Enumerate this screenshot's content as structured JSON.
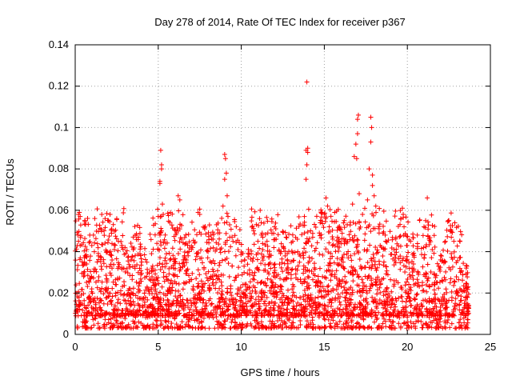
{
  "chart_data": {
    "type": "scatter",
    "title": "Day 278 of 2014, Rate Of TEC Index for receiver p367",
    "xlabel": "GPS time / hours",
    "ylabel": "ROTI / TECUs",
    "xlim": [
      0,
      25
    ],
    "ylim": [
      0,
      0.14
    ],
    "xticks": [
      0,
      5,
      10,
      15,
      20,
      25
    ],
    "yticks": [
      0,
      0.02,
      0.04,
      0.06,
      0.08,
      0.1,
      0.12,
      0.14
    ],
    "xtick_labels": [
      "0",
      "5",
      "10",
      "15",
      "20",
      "25"
    ],
    "ytick_labels": [
      "0",
      "0.02",
      "0.04",
      "0.06",
      "0.08",
      "0.1",
      "0.12",
      "0.14"
    ],
    "grid": true,
    "marker": "+",
    "color": "#ff0000",
    "series": [
      {
        "name": "ROTI",
        "points": [
          [
            0.2,
            0.058
          ],
          [
            0.25,
            0.059
          ],
          [
            0.3,
            0.057
          ],
          [
            0.2,
            0.045
          ],
          [
            0.3,
            0.043
          ],
          [
            0.6,
            0.038
          ],
          [
            0.7,
            0.041
          ],
          [
            1.0,
            0.043
          ],
          [
            1.1,
            0.048
          ],
          [
            1.6,
            0.058
          ],
          [
            1.8,
            0.056
          ],
          [
            2.0,
            0.055
          ],
          [
            2.1,
            0.058
          ],
          [
            2.2,
            0.051
          ],
          [
            2.5,
            0.056
          ],
          [
            2.6,
            0.045
          ],
          [
            3.0,
            0.042
          ],
          [
            3.5,
            0.041
          ],
          [
            3.8,
            0.047
          ],
          [
            4.0,
            0.035
          ],
          [
            4.3,
            0.028
          ],
          [
            4.6,
            0.031
          ],
          [
            5.0,
            0.057
          ],
          [
            5.1,
            0.074
          ],
          [
            5.15,
            0.089
          ],
          [
            5.2,
            0.08
          ],
          [
            5.2,
            0.082
          ],
          [
            5.1,
            0.073
          ],
          [
            5.25,
            0.063
          ],
          [
            5.3,
            0.058
          ],
          [
            5.2,
            0.05
          ],
          [
            5.7,
            0.036
          ],
          [
            6.1,
            0.049
          ],
          [
            6.2,
            0.05
          ],
          [
            6.2,
            0.067
          ],
          [
            6.3,
            0.065
          ],
          [
            6.4,
            0.046
          ],
          [
            6.8,
            0.038
          ],
          [
            7.0,
            0.041
          ],
          [
            7.4,
            0.059
          ],
          [
            7.5,
            0.058
          ],
          [
            7.8,
            0.051
          ],
          [
            8.0,
            0.04
          ],
          [
            8.3,
            0.046
          ],
          [
            8.6,
            0.049
          ],
          [
            8.9,
            0.062
          ],
          [
            9.0,
            0.087
          ],
          [
            9.05,
            0.085
          ],
          [
            9.1,
            0.078
          ],
          [
            9.0,
            0.075
          ],
          [
            9.15,
            0.067
          ],
          [
            9.2,
            0.057
          ],
          [
            9.3,
            0.053
          ],
          [
            9.5,
            0.045
          ],
          [
            9.8,
            0.041
          ],
          [
            10.2,
            0.036
          ],
          [
            10.6,
            0.039
          ],
          [
            11.0,
            0.045
          ],
          [
            11.1,
            0.056
          ],
          [
            11.2,
            0.054
          ],
          [
            11.6,
            0.049
          ],
          [
            12.0,
            0.052
          ],
          [
            12.1,
            0.046
          ],
          [
            12.4,
            0.04
          ],
          [
            12.7,
            0.047
          ],
          [
            13.1,
            0.045
          ],
          [
            13.4,
            0.04
          ],
          [
            13.8,
            0.057
          ],
          [
            13.9,
            0.075
          ],
          [
            13.95,
            0.082
          ],
          [
            13.9,
            0.089
          ],
          [
            14.0,
            0.09
          ],
          [
            14.0,
            0.088
          ],
          [
            13.95,
            0.122
          ],
          [
            14.3,
            0.047
          ],
          [
            14.7,
            0.049
          ],
          [
            15.0,
            0.058
          ],
          [
            15.1,
            0.066
          ],
          [
            15.2,
            0.062
          ],
          [
            15.3,
            0.052
          ],
          [
            15.5,
            0.043
          ],
          [
            15.8,
            0.047
          ],
          [
            16.2,
            0.055
          ],
          [
            16.4,
            0.045
          ],
          [
            16.7,
            0.063
          ],
          [
            16.8,
            0.086
          ],
          [
            16.9,
            0.092
          ],
          [
            17.0,
            0.097
          ],
          [
            17.0,
            0.104
          ],
          [
            17.05,
            0.106
          ],
          [
            16.95,
            0.085
          ],
          [
            17.1,
            0.068
          ],
          [
            17.3,
            0.058
          ],
          [
            17.6,
            0.065
          ],
          [
            17.7,
            0.08
          ],
          [
            17.8,
            0.093
          ],
          [
            17.85,
            0.1
          ],
          [
            17.8,
            0.105
          ],
          [
            17.9,
            0.077
          ],
          [
            17.9,
            0.072
          ],
          [
            18.0,
            0.067
          ],
          [
            18.1,
            0.062
          ],
          [
            18.3,
            0.049
          ],
          [
            18.7,
            0.045
          ],
          [
            19.2,
            0.041
          ],
          [
            19.6,
            0.056
          ],
          [
            19.7,
            0.061
          ],
          [
            19.75,
            0.058
          ],
          [
            19.8,
            0.052
          ],
          [
            20.2,
            0.045
          ],
          [
            20.6,
            0.048
          ],
          [
            21.0,
            0.052
          ],
          [
            21.1,
            0.055
          ],
          [
            21.2,
            0.066
          ],
          [
            21.5,
            0.041
          ],
          [
            22.0,
            0.036
          ],
          [
            22.5,
            0.055
          ],
          [
            22.6,
            0.05
          ],
          [
            22.8,
            0.045
          ],
          [
            23.2,
            0.03
          ],
          [
            23.5,
            0.018
          ],
          [
            23.7,
            0.014
          ]
        ]
      }
    ]
  }
}
